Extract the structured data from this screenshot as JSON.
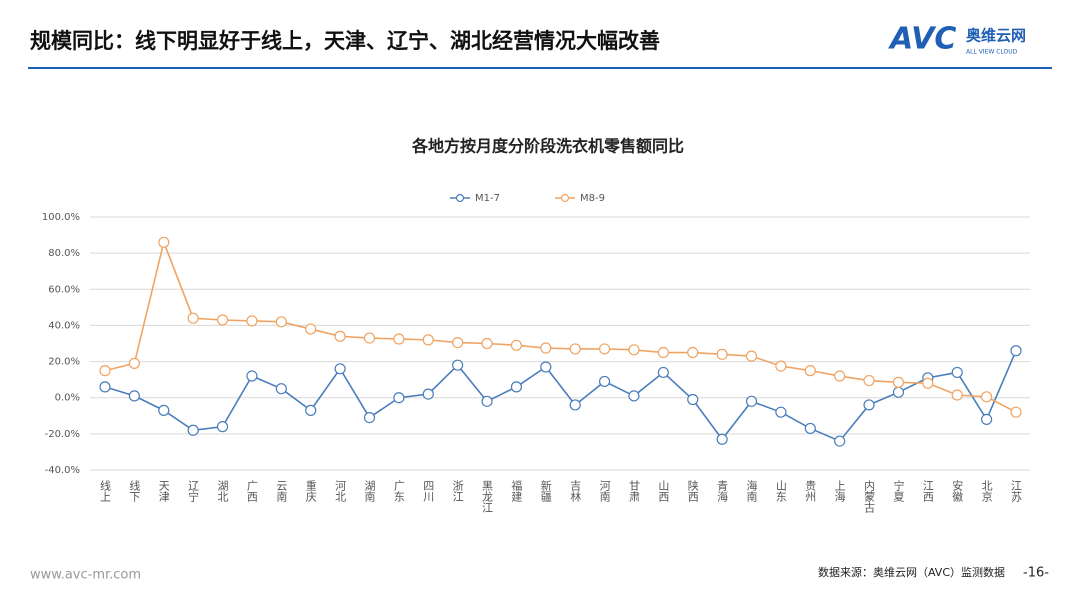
{
  "header": {
    "title": "规模同比：线下明显好于线上，天津、辽宁、湖北经营情况大幅改善",
    "logo": "AVC",
    "logo_cn": "奥维云网",
    "logo_en": "ALL VIEW CLOUD"
  },
  "footer": {
    "url": "www.avc-mr.com",
    "source": "数据来源：奥维云网（AVC）监测数据",
    "page": "-16-"
  },
  "chart_data": {
    "type": "line",
    "title": "各地方按月度分阶段洗衣机零售额同比",
    "categories": [
      "线上",
      "线下",
      "天津",
      "辽宁",
      "湖北",
      "广西",
      "云南",
      "重庆",
      "河北",
      "湖南",
      "广东",
      "四川",
      "浙江",
      "黑龙江",
      "福建",
      "新疆",
      "吉林",
      "河南",
      "甘肃",
      "山西",
      "陕西",
      "青海",
      "海南",
      "山东",
      "贵州",
      "上海",
      "内蒙古",
      "宁夏",
      "江西",
      "安徽",
      "北京",
      "江苏"
    ],
    "series": [
      {
        "name": "M1-7",
        "color": "#4a7ebb",
        "values": [
          6,
          1,
          -7,
          -18,
          -16,
          12,
          5,
          -7,
          16,
          -11,
          0,
          2,
          18,
          -2,
          6,
          17,
          -4,
          9,
          1,
          14,
          -1,
          -23,
          -2,
          -8,
          -17,
          -24,
          -4,
          3,
          11,
          14,
          -12,
          26
        ]
      },
      {
        "name": "M8-9",
        "color": "#f0a463",
        "values": [
          15,
          19,
          86,
          44,
          43,
          42.5,
          42,
          38,
          34,
          33,
          32.5,
          32,
          30.5,
          30,
          29,
          27.5,
          27,
          27,
          26.5,
          25,
          25,
          24,
          23,
          17.5,
          15,
          12,
          9.5,
          8.5,
          8,
          1.5,
          0.5,
          -8
        ]
      }
    ],
    "ylim": [
      -40,
      100
    ],
    "yticks": [
      {
        "value": -40,
        "label": "-40.0%"
      },
      {
        "value": -20,
        "label": "-20.0%"
      },
      {
        "value": 0,
        "label": "0.0%"
      },
      {
        "value": 20,
        "label": "20.0%"
      },
      {
        "value": 40,
        "label": "40.0%"
      },
      {
        "value": 60,
        "label": "60.0%"
      },
      {
        "value": 80,
        "label": "80.0%"
      },
      {
        "value": 100,
        "label": "100.0%"
      }
    ],
    "grid": true,
    "legend": "top"
  }
}
